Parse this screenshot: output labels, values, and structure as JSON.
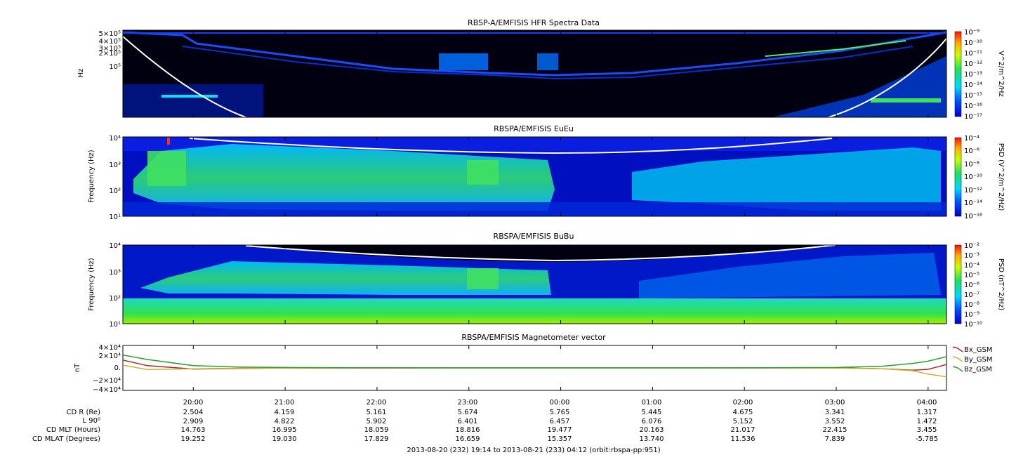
{
  "panels": [
    {
      "id": "hfr",
      "title": "RBSP-A/EMFISIS  HFR Spectra Data",
      "ylabel": "Hz",
      "ytick_labels": [
        "5×10⁵",
        "4×10⁵",
        "3×10⁵",
        "2×10⁵",
        "10⁵"
      ],
      "colorbar_label": "V^2/m^2/Hz",
      "colorbar_ticks": [
        "10⁻⁹",
        "10⁻¹⁰",
        "10⁻¹¹",
        "10⁻¹²",
        "10⁻¹³",
        "10⁻¹⁴",
        "10⁻¹⁵",
        "10⁻¹⁶",
        "10⁻¹⁷"
      ],
      "colorscale": "log",
      "zrange": [
        1e-17,
        1e-09
      ]
    },
    {
      "id": "eueu",
      "title": "RBSPA/EMFISIS  EuEu",
      "ylabel": "Frequency (Hz)",
      "ytick_labels": [
        "10⁴",
        "10³",
        "10²",
        "10¹"
      ],
      "yrange": [
        10,
        10000
      ],
      "colorbar_label": "PSD (V^2/m^2/Hz)",
      "colorbar_ticks": [
        "10⁻⁴",
        "10⁻⁶",
        "10⁻⁸",
        "10⁻¹⁰",
        "10⁻¹²",
        "10⁻¹⁴",
        "10⁻¹⁶"
      ],
      "colorscale": "log",
      "zrange": [
        1e-16,
        0.0001
      ]
    },
    {
      "id": "bubu",
      "title": "RBSPA/EMFISIS  BuBu",
      "ylabel": "Frequency (Hz)",
      "ytick_labels": [
        "10⁴",
        "10³",
        "10²",
        "10¹"
      ],
      "yrange": [
        10,
        10000
      ],
      "colorbar_label": "PSD (nT^2/Hz)",
      "colorbar_ticks": [
        "10⁻²",
        "10⁻³",
        "10⁻⁴",
        "10⁻⁵",
        "10⁻⁶",
        "10⁻⁷",
        "10⁻⁸",
        "10⁻⁹",
        "10⁻¹⁰"
      ],
      "colorscale": "log",
      "zrange": [
        1e-10,
        0.01
      ]
    },
    {
      "id": "mag",
      "title": "RBSPA/EMFISIS  Magnetometer vector",
      "ylabel": "nT",
      "ytick_labels": [
        "4×10⁴",
        "2×10⁴",
        "0.",
        "−2×10⁴",
        "−4×10⁴"
      ],
      "yrange": [
        -40000,
        40000
      ]
    }
  ],
  "chart_data": {
    "type": "line",
    "title": "RBSPA/EMFISIS  Magnetometer vector",
    "ylabel": "nT",
    "ylim": [
      -40000,
      40000
    ],
    "x": [
      "19:14",
      "19:30",
      "20:00",
      "20:30",
      "21:00",
      "22:00",
      "23:00",
      "00:00",
      "01:00",
      "02:00",
      "03:00",
      "03:30",
      "03:50",
      "04:00",
      "04:12"
    ],
    "series": [
      {
        "name": "Bx_GSM",
        "color": "#b22222",
        "values": [
          14000,
          4000,
          -2000,
          -1000,
          -300,
          -80,
          -30,
          0,
          20,
          40,
          80,
          -1500,
          -4000,
          -2500,
          6000
        ]
      },
      {
        "name": "By_GSM",
        "color": "#c8b43a",
        "values": [
          5000,
          -3000,
          -1500,
          -500,
          -200,
          -60,
          -20,
          0,
          10,
          30,
          -200,
          -1500,
          -5000,
          -11000,
          -16000
        ]
      },
      {
        "name": "Bz_GSM",
        "color": "#2ca02c",
        "values": [
          23000,
          15000,
          4000,
          1500,
          700,
          300,
          120,
          80,
          120,
          300,
          700,
          3000,
          8000,
          12000,
          20000
        ]
      }
    ]
  },
  "x_ticks": [
    "20:00",
    "21:00",
    "22:00",
    "23:00",
    "00:00",
    "01:00",
    "02:00",
    "03:00",
    "04:00"
  ],
  "ephemeris": [
    {
      "label": "CD R (Re)",
      "values": [
        "2.504",
        "4.159",
        "5.161",
        "5.674",
        "5.765",
        "5.445",
        "4.675",
        "3.341",
        "1.317"
      ]
    },
    {
      "label": "L 90⁰",
      "values": [
        "2.909",
        "4.822",
        "5.902",
        "6.401",
        "6.457",
        "6.076",
        "5.152",
        "3.552",
        "1.472"
      ]
    },
    {
      "label": "CD MLT (Hours)",
      "values": [
        "14.763",
        "16.995",
        "18.059",
        "18.816",
        "19.477",
        "20.163",
        "21.017",
        "22.415",
        "3.455"
      ]
    },
    {
      "label": "CD MLAT (Degrees)",
      "values": [
        "19.252",
        "19.030",
        "17.829",
        "16.659",
        "15.357",
        "13.740",
        "11.536",
        "7.839",
        "-5.785"
      ]
    }
  ],
  "footer": "2013-08-20 (232) 19:14 to 2013-08-21 (233) 04:12 (orbit:rbspa-pp:951)"
}
